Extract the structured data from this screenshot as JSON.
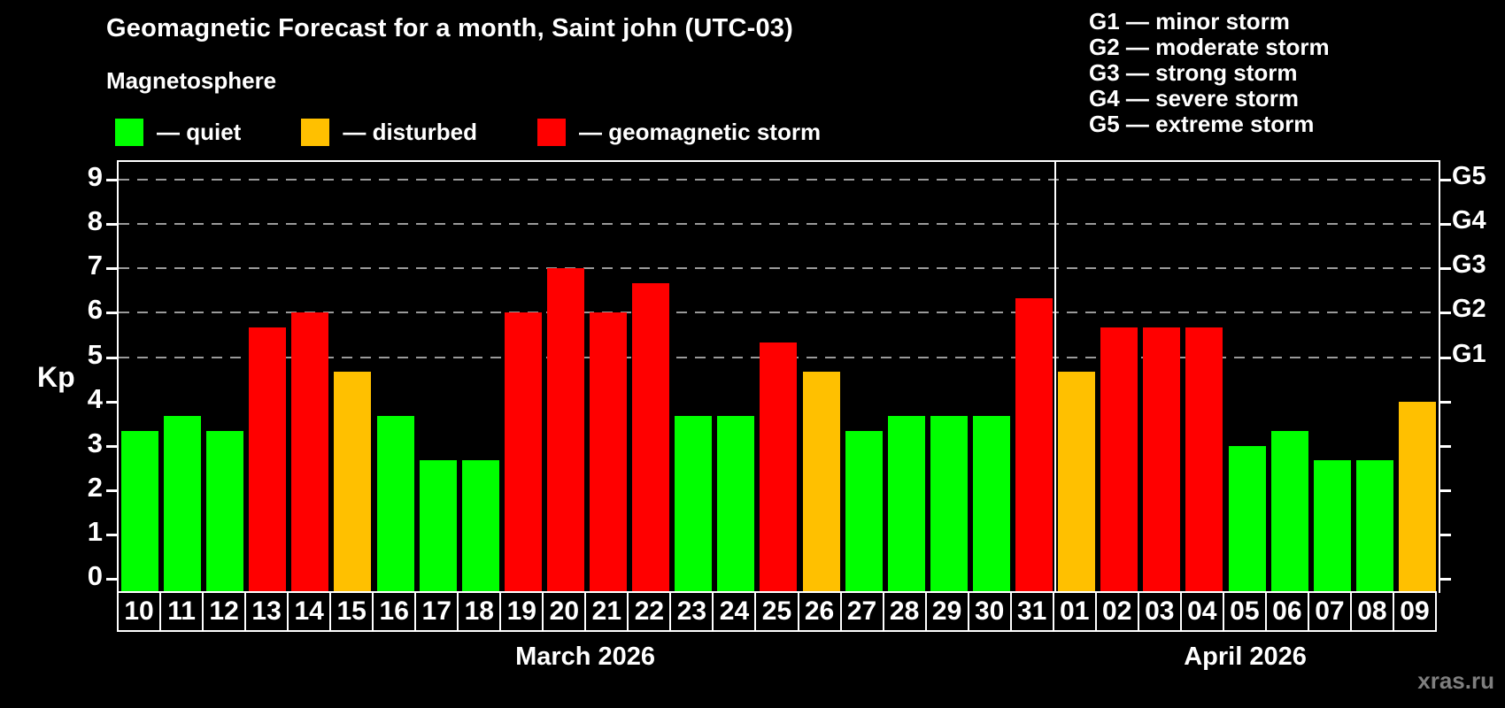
{
  "title": "Geomagnetic Forecast for a month, Saint john (UTC-03)",
  "magnetosphere_legend": {
    "heading": "Magnetosphere",
    "items": [
      {
        "key": "quiet",
        "label": "— quiet",
        "color": "#00ff00"
      },
      {
        "key": "disturbed",
        "label": "— disturbed",
        "color": "#ffc000"
      },
      {
        "key": "storm",
        "label": "— geomagnetic storm",
        "color": "#ff0000"
      }
    ]
  },
  "g_scale_legend": {
    "lines": [
      "G1 — minor storm",
      "G2 — moderate storm",
      "G3 — strong storm",
      "G4 — severe storm",
      "G5 — extreme storm"
    ]
  },
  "y_axis": {
    "label": "Kp",
    "ticks": [
      0,
      1,
      2,
      3,
      4,
      5,
      6,
      7,
      8,
      9
    ],
    "gridlines_at": [
      5,
      6,
      7,
      8,
      9
    ],
    "range": [
      0,
      9
    ]
  },
  "right_axis": {
    "labels": [
      {
        "text": "G1",
        "kp": 5
      },
      {
        "text": "G2",
        "kp": 6
      },
      {
        "text": "G3",
        "kp": 7
      },
      {
        "text": "G4",
        "kp": 8
      },
      {
        "text": "G5",
        "kp": 9
      }
    ]
  },
  "months": [
    {
      "label": "March 2026",
      "days": 22
    },
    {
      "label": "April 2026",
      "days": 9
    }
  ],
  "watermark": "xras.ru",
  "chart_data": {
    "type": "bar",
    "title": "Geomagnetic Forecast for a month, Saint john (UTC-03)",
    "xlabel": "",
    "ylabel": "Kp",
    "ylim": [
      0,
      9
    ],
    "grid": "horizontal dashed gridlines at Kp 5,6,7,8,9 (G1–G5 levels)",
    "legend_position": "top-left (magnetosphere) and top-right (G scale)",
    "categories": [
      "10",
      "11",
      "12",
      "13",
      "14",
      "15",
      "16",
      "17",
      "18",
      "19",
      "20",
      "21",
      "22",
      "23",
      "24",
      "25",
      "26",
      "27",
      "28",
      "29",
      "30",
      "31",
      "01",
      "02",
      "03",
      "04",
      "05",
      "06",
      "07",
      "08",
      "09"
    ],
    "values": [
      3.33,
      3.67,
      3.33,
      5.67,
      6.0,
      4.67,
      3.67,
      2.67,
      2.67,
      6.0,
      7.0,
      6.0,
      6.67,
      3.67,
      3.67,
      5.33,
      4.67,
      3.33,
      3.67,
      3.67,
      3.67,
      6.33,
      4.67,
      5.67,
      5.67,
      5.67,
      3.0,
      3.33,
      2.67,
      2.67,
      4.0
    ],
    "statuses": [
      "quiet",
      "quiet",
      "quiet",
      "storm",
      "storm",
      "disturbed",
      "quiet",
      "quiet",
      "quiet",
      "storm",
      "storm",
      "storm",
      "storm",
      "quiet",
      "quiet",
      "storm",
      "disturbed",
      "quiet",
      "quiet",
      "quiet",
      "quiet",
      "storm",
      "disturbed",
      "storm",
      "storm",
      "storm",
      "quiet",
      "quiet",
      "quiet",
      "quiet",
      "disturbed"
    ],
    "status_colors": {
      "quiet": "#00ff00",
      "disturbed": "#ffc000",
      "storm": "#ff0000"
    }
  }
}
